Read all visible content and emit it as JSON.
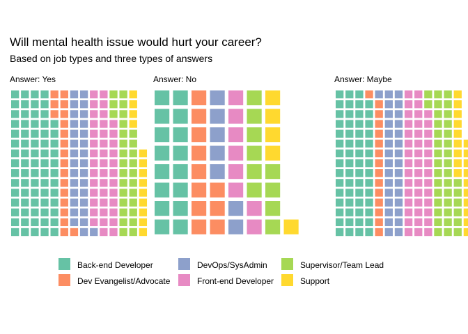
{
  "chart_data": {
    "type": "waffle",
    "title": "Will mental health issue would hurt your career?",
    "subtitle": "Based on job types and three types of answers",
    "categories": [
      "Back-end Developer",
      "Dev Evangelist/Advocate",
      "DevOps/SysAdmin",
      "Front-end Developer",
      "Supervisor/Team Lead",
      "Support"
    ],
    "colors": {
      "Back-end Developer": "#66C2A5",
      "Dev Evangelist/Advocate": "#FC8D62",
      "DevOps/SysAdmin": "#8DA0CB",
      "Front-end Developer": "#E78AC3",
      "Supervisor/Team Lead": "#A6D854",
      "Support": "#FFD92F"
    },
    "panels": [
      {
        "label": "Answer: Yes",
        "grid_rows": 15,
        "counts": [
          72,
          19,
          30,
          41,
          29,
          13
        ]
      },
      {
        "label": "Answer: No",
        "grid_rows": 8,
        "counts": [
          16,
          11,
          7,
          8,
          10,
          5
        ]
      },
      {
        "label": "Answer: Maybe",
        "grid_rows": 15,
        "counts": [
          59,
          15,
          31,
          43,
          38,
          19
        ]
      }
    ],
    "legend_position": "bottom"
  }
}
